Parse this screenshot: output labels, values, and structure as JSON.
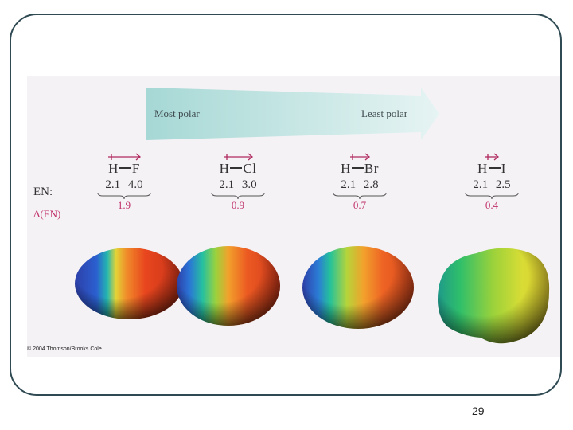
{
  "arrow": {
    "left_label": "Most polar",
    "right_label": "Least polar"
  },
  "row_labels": {
    "en": "EN:",
    "delta_en": "Δ(EN)"
  },
  "molecules": [
    {
      "h": "H",
      "x": "F",
      "en_h": "2.1",
      "en_x": "4.0",
      "delta": "1.9"
    },
    {
      "h": "H",
      "x": "Cl",
      "en_h": "2.1",
      "en_x": "3.0",
      "delta": "0.9"
    },
    {
      "h": "H",
      "x": "Br",
      "en_h": "2.1",
      "en_x": "2.8",
      "delta": "0.7"
    },
    {
      "h": "H",
      "x": "I",
      "en_h": "2.1",
      "en_x": "2.5",
      "delta": "0.4"
    }
  ],
  "copyright": "© 2004 Thomson/Brooks Cole",
  "page_number": "29",
  "colors": {
    "frame": "#2f4a53",
    "delta": "#c0306a",
    "arrow": "#bfe3e1"
  }
}
